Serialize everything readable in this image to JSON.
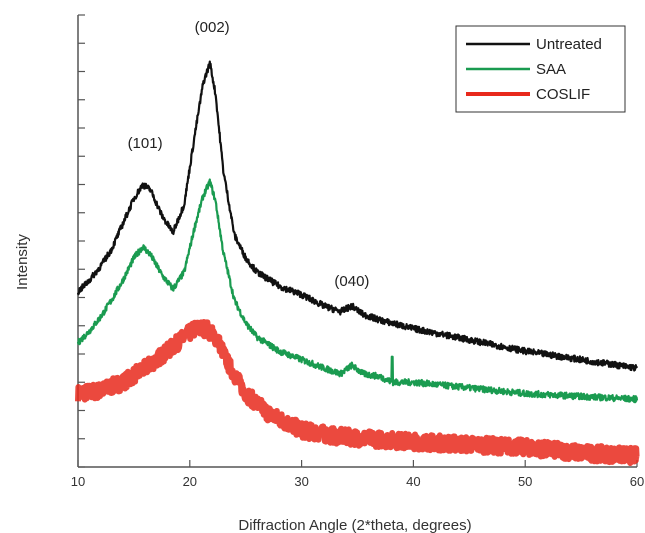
{
  "chart_data": {
    "type": "line",
    "title": "",
    "xlabel": "Diffraction Angle (2*theta, degrees)",
    "ylabel": "Intensity",
    "xlim": [
      10,
      60
    ],
    "ylim": [
      0,
      16
    ],
    "x_ticks": [
      "10",
      "20",
      "30",
      "40",
      "50",
      "60"
    ],
    "y_tick_count": 16,
    "y_tick_labels_shown": false,
    "grid": false,
    "legend_position": "top-right",
    "annotations": [
      {
        "text": "(101)",
        "x": 16,
        "y": 11.3
      },
      {
        "text": "(002)",
        "x": 22,
        "y": 15.4
      },
      {
        "text": "(040)",
        "x": 34.5,
        "y": 6.4
      }
    ],
    "series": [
      {
        "name": "Untreated",
        "color": "#111111",
        "x": [
          10,
          11,
          12,
          13,
          14,
          15,
          15.8,
          16.5,
          17.5,
          18.5,
          19.5,
          20.5,
          21.2,
          21.8,
          22.3,
          23,
          24,
          25,
          26,
          28,
          30,
          32,
          33.5,
          34.5,
          35.5,
          37,
          40,
          45,
          50,
          55,
          60
        ],
        "y": [
          6.2,
          6.6,
          7.1,
          7.7,
          8.6,
          9.5,
          10.0,
          9.8,
          8.9,
          8.3,
          9.3,
          11.9,
          13.6,
          14.3,
          13.2,
          10.5,
          8.2,
          7.4,
          6.9,
          6.4,
          6.1,
          5.7,
          5.5,
          5.7,
          5.4,
          5.2,
          4.9,
          4.5,
          4.1,
          3.8,
          3.5
        ]
      },
      {
        "name": "SAA",
        "color": "#1a9b50",
        "x": [
          10,
          11,
          12,
          13,
          14,
          15,
          15.8,
          16.5,
          17.5,
          18.5,
          19.5,
          20.5,
          21.2,
          21.8,
          22.3,
          23,
          24,
          25,
          26,
          28,
          30,
          32,
          33.5,
          34.5,
          35.5,
          37,
          38.1,
          40,
          45,
          50,
          55,
          60
        ],
        "y": [
          4.4,
          4.8,
          5.3,
          5.9,
          6.6,
          7.4,
          7.8,
          7.5,
          6.8,
          6.3,
          6.9,
          8.6,
          9.6,
          10.1,
          9.4,
          7.6,
          5.9,
          5.1,
          4.6,
          4.1,
          3.8,
          3.5,
          3.3,
          3.6,
          3.3,
          3.2,
          3.0,
          3.0,
          2.8,
          2.6,
          2.5,
          2.4
        ]
      },
      {
        "name": "COSLIF",
        "color": "#e8291c",
        "x": [
          10,
          12,
          14,
          16,
          18,
          19.5,
          20.5,
          21.5,
          22.5,
          23.5,
          25,
          27,
          30,
          33,
          36,
          40,
          45,
          50,
          55,
          60
        ],
        "y": [
          2.6,
          2.7,
          3.0,
          3.5,
          4.1,
          4.6,
          4.9,
          4.9,
          4.5,
          3.6,
          2.6,
          1.9,
          1.3,
          1.1,
          1.0,
          0.9,
          0.8,
          0.7,
          0.5,
          0.4
        ]
      }
    ]
  }
}
